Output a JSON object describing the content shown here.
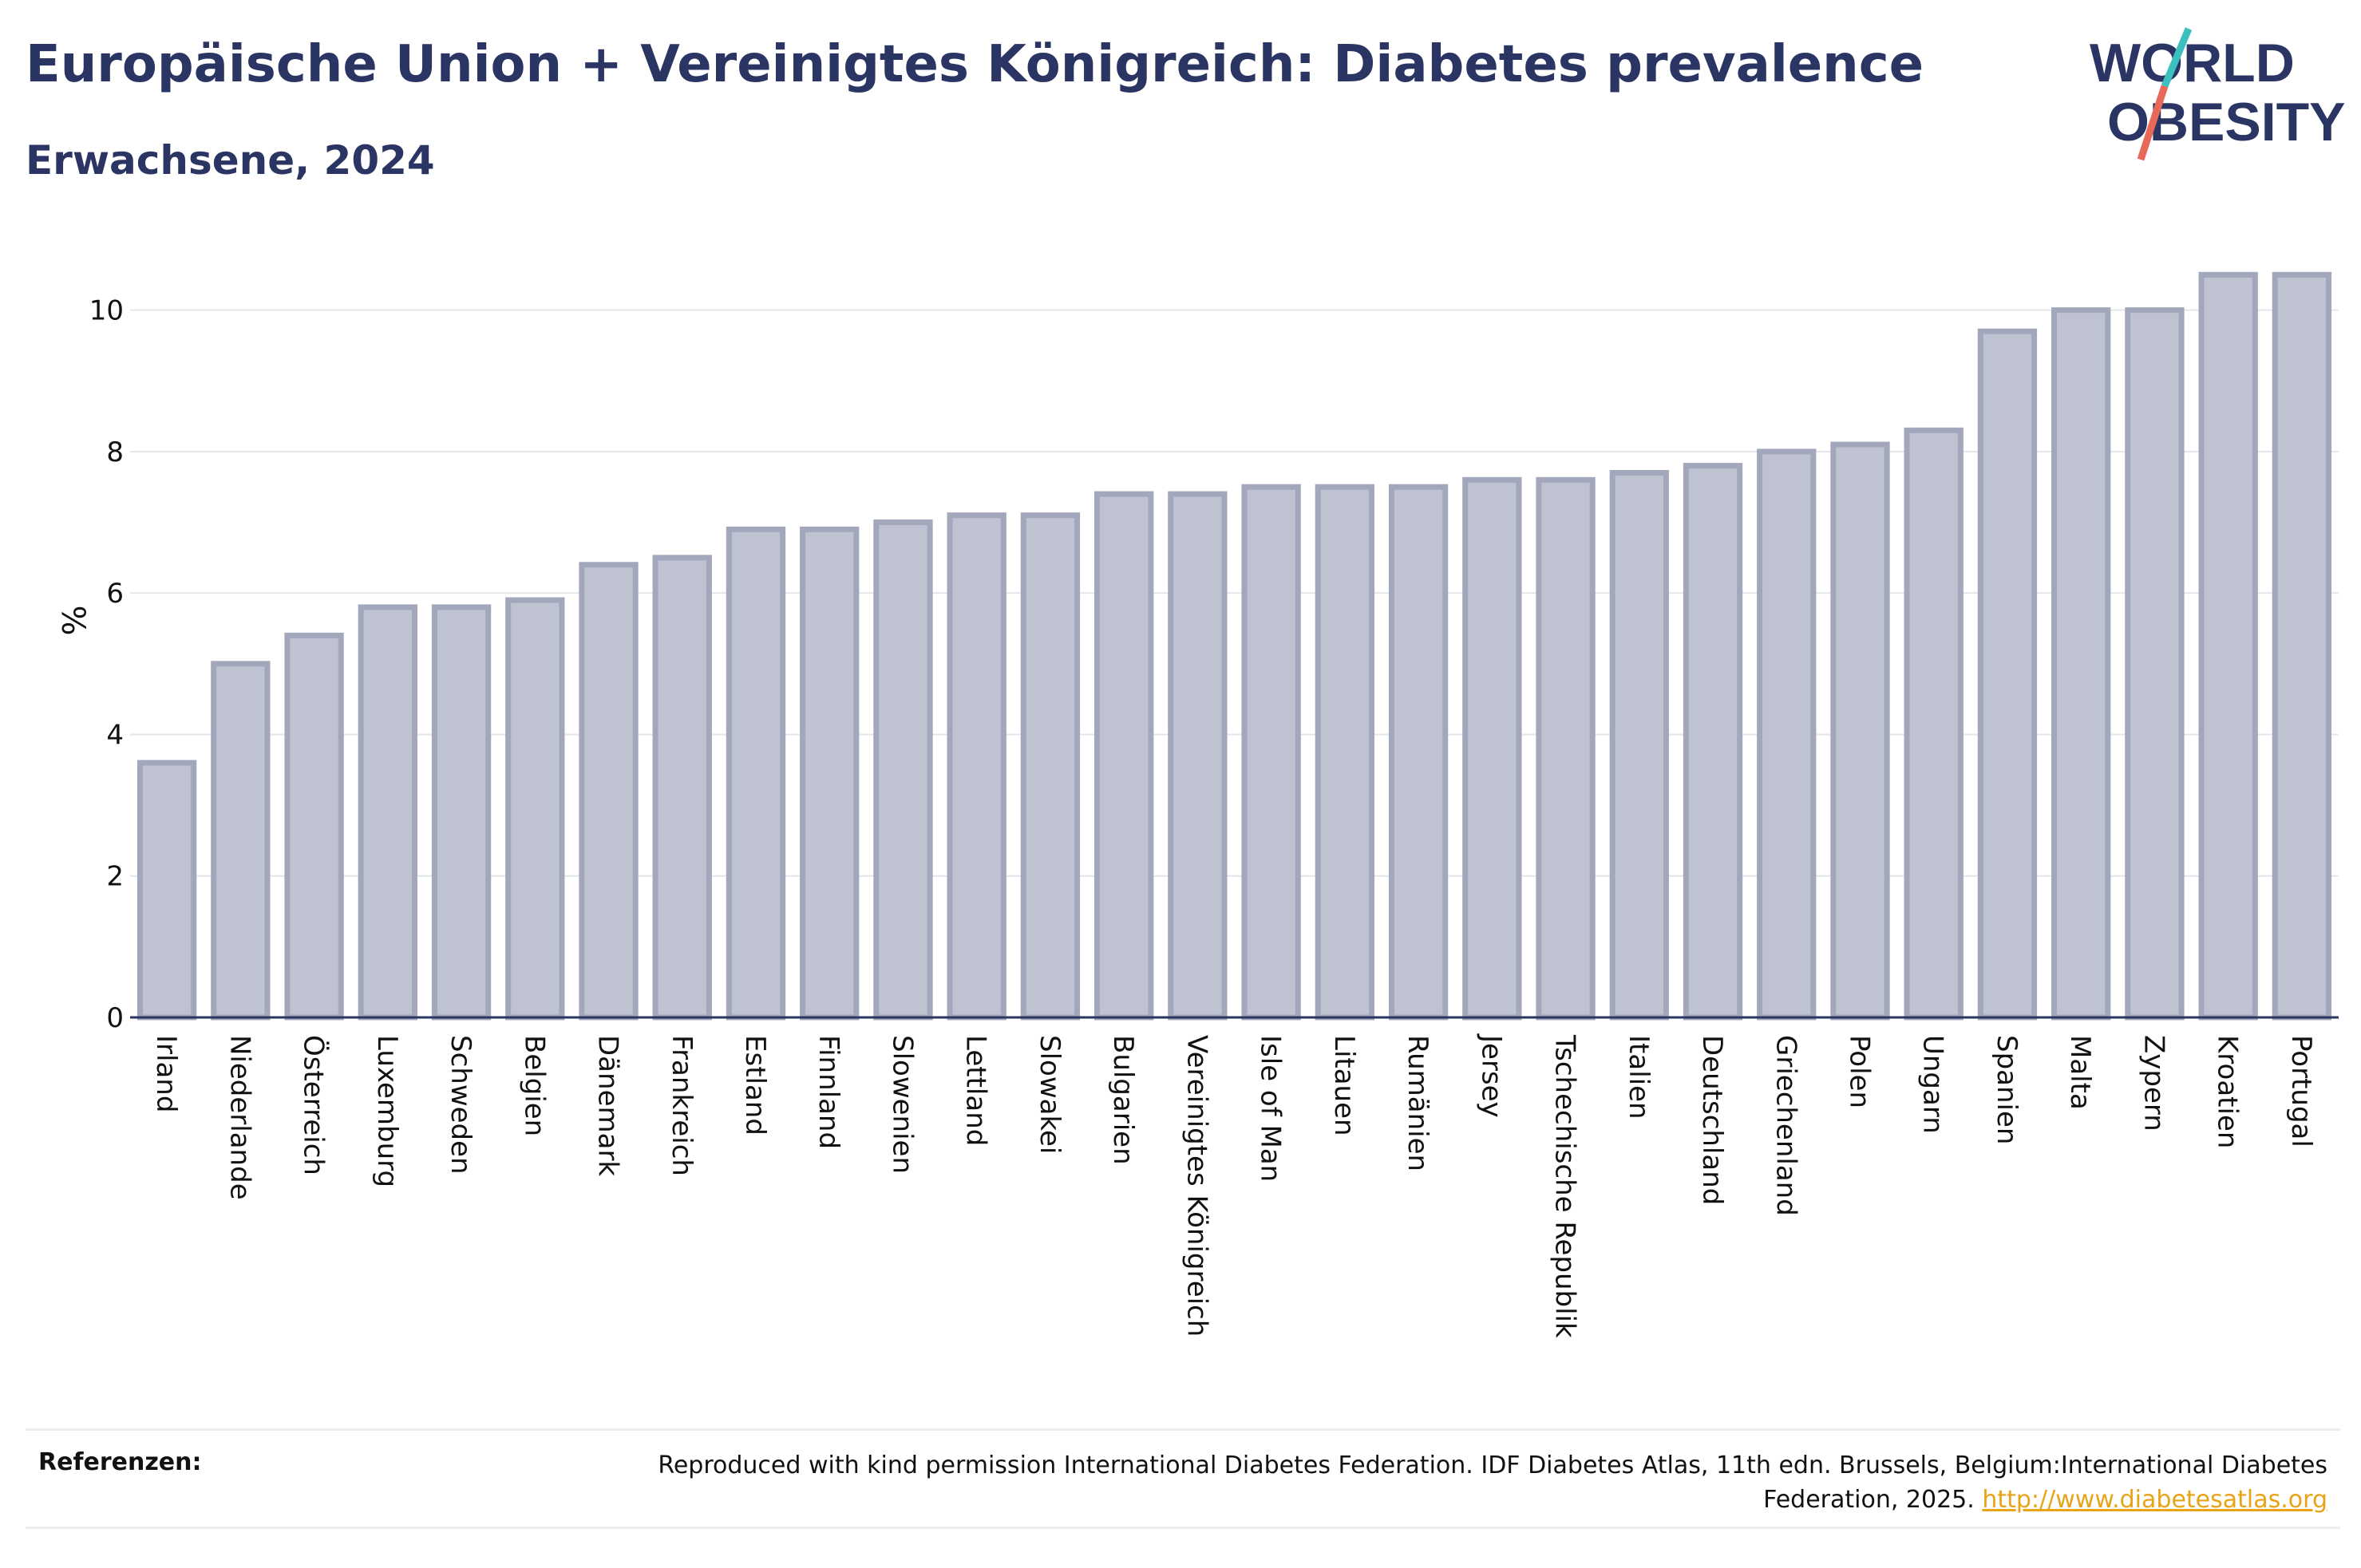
{
  "header": {
    "title": "Europäische Union + Vereinigtes Königreich: Diabetes prevalence",
    "subtitle": "Erwachsene, 2024"
  },
  "logo": {
    "line1": "WORLD",
    "line2": "OBESITY",
    "colors": {
      "text": "#2b3563",
      "slash_teal": "#3bbfbf",
      "slash_red": "#e8685a"
    }
  },
  "chart_data": {
    "type": "bar",
    "ylabel": "%",
    "ylim": [
      0,
      11
    ],
    "yticks": [
      0,
      2,
      4,
      6,
      8,
      10
    ],
    "grid": true,
    "bar_color": "#bfc2d0",
    "bar_edge_color": "#a3a7bc",
    "categories": [
      "Irland",
      "Niederlande",
      "Österreich",
      "Luxemburg",
      "Schweden",
      "Belgien",
      "Dänemark",
      "Frankreich",
      "Estland",
      "Finnland",
      "Slowenien",
      "Lettland",
      "Slowakei",
      "Bulgarien",
      "Vereinigtes Königreich",
      "Isle of Man",
      "Litauen",
      "Rumänien",
      "Jersey",
      "Tschechische Republik",
      "Italien",
      "Deutschland",
      "Griechenland",
      "Polen",
      "Ungarn",
      "Spanien",
      "Malta",
      "Zypern",
      "Kroatien",
      "Portugal"
    ],
    "values": [
      3.6,
      5.0,
      5.4,
      5.8,
      5.8,
      5.9,
      6.4,
      6.5,
      6.9,
      6.9,
      7.0,
      7.1,
      7.1,
      7.4,
      7.4,
      7.5,
      7.5,
      7.5,
      7.6,
      7.6,
      7.7,
      7.8,
      8.0,
      8.1,
      8.3,
      9.7,
      10.0,
      10.0,
      10.5,
      10.5
    ]
  },
  "references": {
    "label": "Referenzen:",
    "text": "Reproduced with kind permission International Diabetes Federation. IDF Diabetes Atlas, 11th edn. Brussels, Belgium:International Diabetes Federation, 2025.",
    "link": "http://www.diabetesatlas.org"
  }
}
